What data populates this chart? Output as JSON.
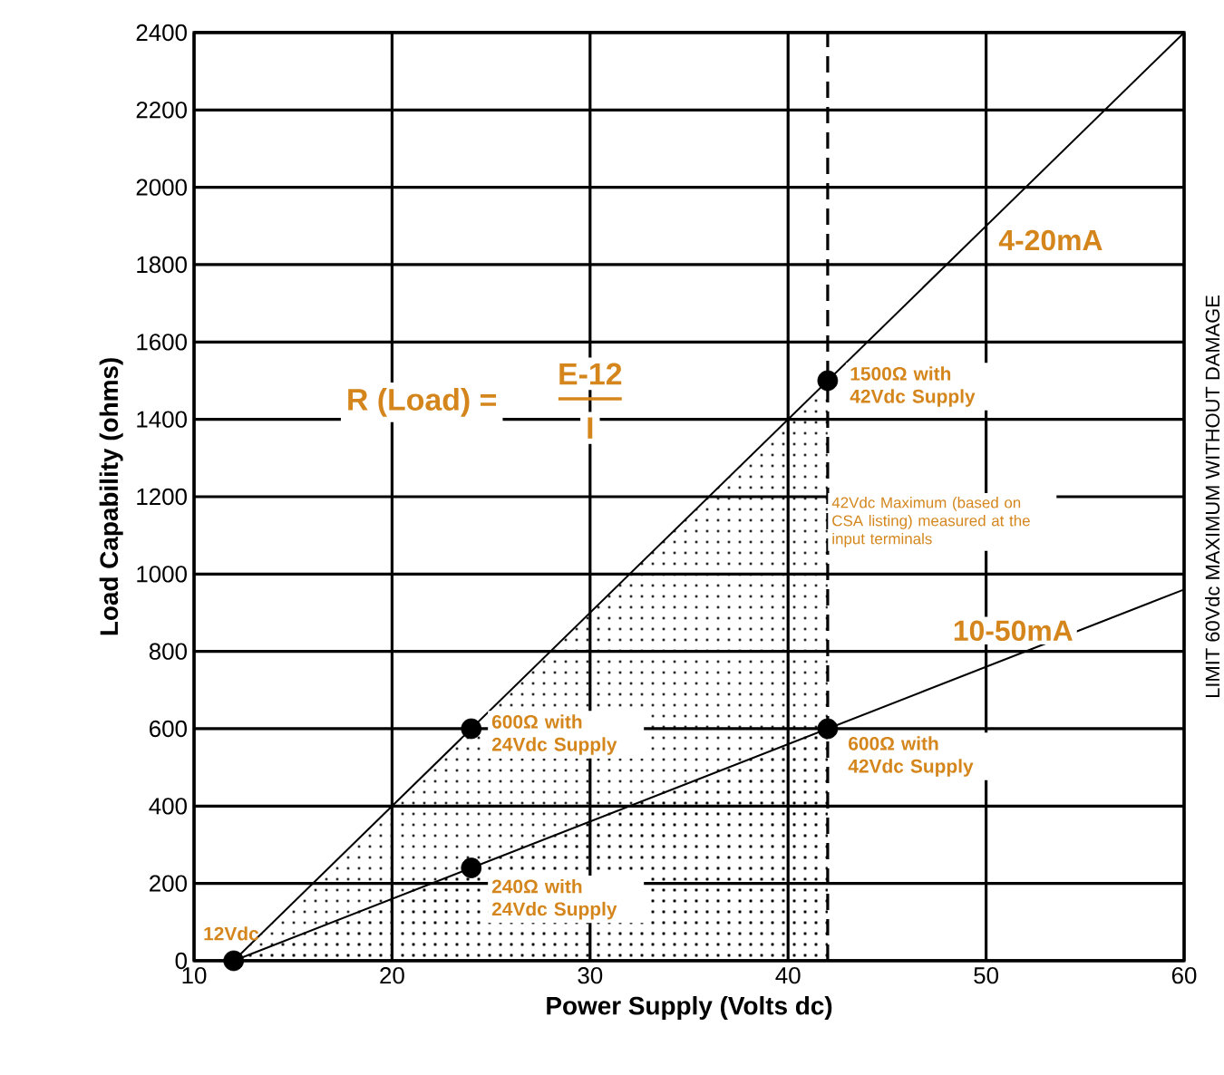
{
  "chart_data": {
    "type": "line",
    "xlabel": "Power Supply (Volts dc)",
    "ylabel": "Load Capability (ohms)",
    "xlim": [
      10,
      60
    ],
    "xticks": [
      10,
      20,
      30,
      40,
      50,
      60
    ],
    "ylim": [
      0,
      2400
    ],
    "yticks": [
      0,
      200,
      400,
      600,
      800,
      1000,
      1200,
      1400,
      1600,
      1800,
      2000,
      2200,
      2400
    ],
    "grid": true,
    "series": [
      {
        "type": "area",
        "color": "#000000",
        "x": [
          12,
          42
        ],
        "values": [
          0,
          1500
        ]
      },
      {
        "type": "area",
        "color": "#000000",
        "x": [
          12,
          42
        ],
        "values": [
          0,
          600
        ]
      },
      {
        "name": "4-20mA",
        "color": "#000000",
        "x": [
          12,
          60
        ],
        "values": [
          0,
          2400
        ]
      },
      {
        "name": "10-50mA",
        "color": "#000000",
        "x": [
          12,
          60
        ],
        "values": [
          0,
          960
        ]
      },
      {
        "type": "scatter",
        "marker": "circle",
        "color": "#000000",
        "x": [
          12,
          24,
          42,
          24,
          42
        ],
        "values": [
          0,
          600,
          1500,
          240,
          600
        ]
      }
    ],
    "ref_lines": [
      {
        "axis": "x",
        "value": 42,
        "label": "42Vdc Maximum (based on CSA listing) measured at the input terminals",
        "line_style": "dashed",
        "color": "#000000"
      }
    ],
    "annotations": [
      "R (Load) =",
      "E-12",
      "I",
      {
        "text": "12Vdc",
        "x": 12,
        "y": 0
      },
      {
        "text": "1500Ω with 42Vdc Supply",
        "x": 42,
        "y": 1500
      },
      {
        "text": "600Ω with 24Vdc Supply",
        "x": 24,
        "y": 600
      },
      {
        "text": "240Ω with 24Vdc Supply",
        "x": 24,
        "y": 240
      },
      {
        "text": "600Ω with 42Vdc Supply",
        "x": 42,
        "y": 600
      },
      "LIMIT 60Vdc MAXIMUM WITHOUT DAMAGE"
    ]
  }
}
